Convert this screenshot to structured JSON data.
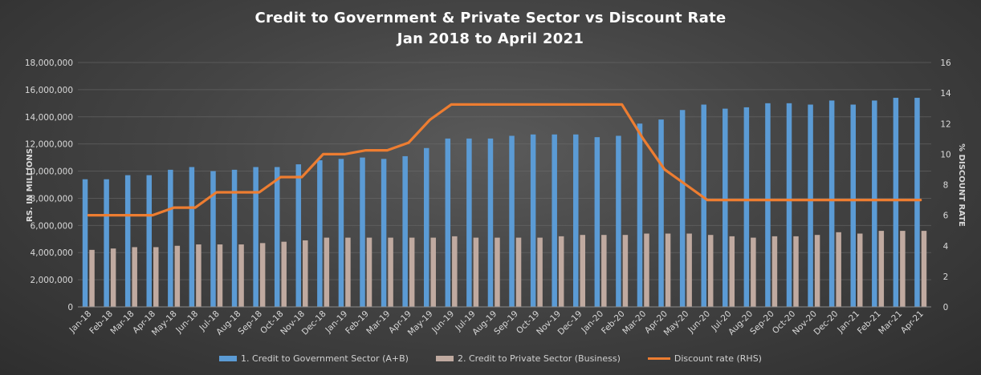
{
  "chart_data": {
    "type": "bar+line",
    "title": "Credit to Government  & Private Sector vs Discount  Rate",
    "subtitle": "Jan 2018 to April  2021",
    "ylabel": "RS. IN MILLIONS",
    "y2label": "% DISCOUNT RATE",
    "ylim": [
      0,
      18000000
    ],
    "y_ticks": [
      "0",
      "2,000,000",
      "4,000,000",
      "6,000,000",
      "8,000,000",
      "10,000,000",
      "12,000,000",
      "14,000,000",
      "16,000,000",
      "18,000,000"
    ],
    "y2lim": [
      0,
      16
    ],
    "y2_ticks": [
      "0",
      "2",
      "4",
      "6",
      "8",
      "10",
      "12",
      "14",
      "16"
    ],
    "categories": [
      "Jan-18",
      "Feb-18",
      "Mar-18",
      "Apr-18",
      "May-18",
      "Jun-18",
      "Jul-18",
      "Aug-18",
      "Sep-18",
      "Oct-18",
      "Nov-18",
      "Dec-18",
      "Jan-19",
      "Feb-19",
      "Mar-19",
      "Apr-19",
      "May-19",
      "Jun-19",
      "Jul-19",
      "Aug-19",
      "Sep-19",
      "Oct-19",
      "Nov-19",
      "Dec-19",
      "Jan-20",
      "Feb-20",
      "Mar-20",
      "Apr-20",
      "May-20",
      "Jun-20",
      "Jul-20",
      "Aug-20",
      "Sep-20",
      "Oct-20",
      "Nov-20",
      "Dec-20",
      "Jan-21",
      "Feb-21",
      "Mar-21",
      "Apr-21"
    ],
    "series": [
      {
        "name": "1. Credit to Government Sector (A+B)",
        "type": "bar",
        "color": "#5b9bd5",
        "values": [
          9400000,
          9400000,
          9700000,
          9700000,
          10100000,
          10300000,
          10000000,
          10100000,
          10300000,
          10300000,
          10500000,
          10800000,
          10900000,
          11000000,
          10900000,
          11100000,
          11700000,
          12400000,
          12400000,
          12400000,
          12600000,
          12700000,
          12700000,
          12700000,
          12500000,
          12600000,
          13500000,
          13800000,
          14500000,
          14900000,
          14600000,
          14700000,
          15000000,
          15000000,
          14900000,
          15200000,
          14900000,
          15200000,
          15400000,
          15400000
        ]
      },
      {
        "name": "2. Credit to Private Sector (Business)",
        "type": "bar",
        "color": "#c0aaa0",
        "values": [
          4200000,
          4300000,
          4400000,
          4400000,
          4500000,
          4600000,
          4600000,
          4600000,
          4700000,
          4800000,
          4900000,
          5100000,
          5100000,
          5100000,
          5100000,
          5100000,
          5100000,
          5200000,
          5100000,
          5100000,
          5100000,
          5100000,
          5200000,
          5300000,
          5300000,
          5300000,
          5400000,
          5400000,
          5400000,
          5300000,
          5200000,
          5100000,
          5200000,
          5200000,
          5300000,
          5500000,
          5400000,
          5600000,
          5600000,
          5600000
        ]
      },
      {
        "name": "Discount rate (RHS)",
        "type": "line",
        "axis": "right",
        "color": "#ed7d31",
        "values": [
          6,
          6,
          6,
          6,
          6.5,
          6.5,
          7.5,
          7.5,
          7.5,
          8.5,
          8.5,
          10,
          10,
          10.25,
          10.25,
          10.75,
          12.25,
          13.25,
          13.25,
          13.25,
          13.25,
          13.25,
          13.25,
          13.25,
          13.25,
          13.25,
          11,
          9,
          8,
          7,
          7,
          7,
          7,
          7,
          7,
          7,
          7,
          7,
          7,
          7
        ]
      }
    ],
    "legend_position": "bottom",
    "grid": true
  }
}
